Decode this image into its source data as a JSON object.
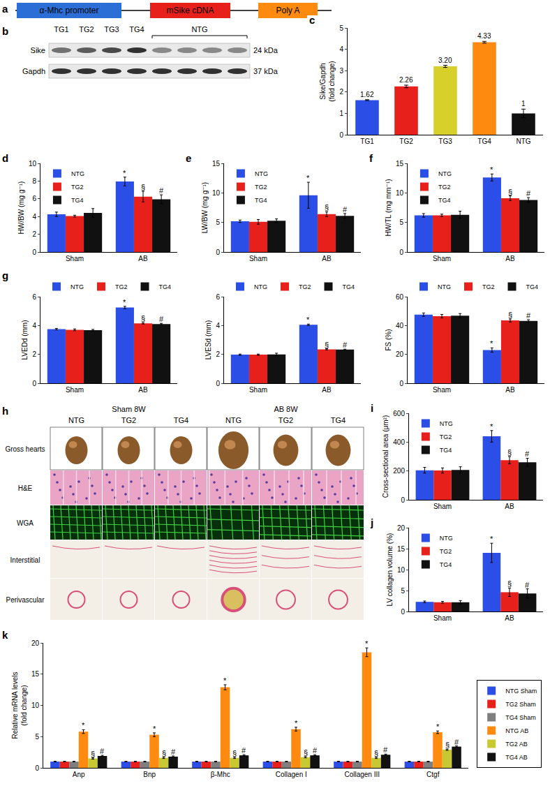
{
  "diagram": {
    "title": "a",
    "parts": [
      "α-Mhc promoter",
      "mSike cDNA",
      "Poly A"
    ],
    "colors": [
      "#2b6fd6",
      "#e8201c",
      "#ff8a10"
    ]
  },
  "blot": {
    "title": "b",
    "lanes": [
      "TG1",
      "TG2",
      "TG3",
      "TG4"
    ],
    "group": "NTG",
    "rows": [
      {
        "name": "Sike",
        "size": "24 kDa"
      },
      {
        "name": "Gapdh",
        "size": "37 kDa"
      }
    ]
  },
  "histology": {
    "title": "h",
    "groups": [
      "Sham 8W",
      "AB 8W"
    ],
    "columns": [
      "NTG",
      "TG2",
      "TG4"
    ],
    "rows": [
      "Gross hearts",
      "H&E",
      "WGA",
      "Interstitial",
      "Perivascular"
    ]
  },
  "chart_data": [
    {
      "type": "bar",
      "title": "c",
      "ylabel": "Sike/Gapdh\n(fold change)",
      "categories": [
        "TG1",
        "TG2",
        "TG3",
        "TG4",
        "NTG"
      ],
      "values": [
        1.62,
        2.26,
        3.2,
        4.33,
        1
      ],
      "value_labels": [
        "1.62",
        "2.26",
        "3.20",
        "4.33",
        "1"
      ],
      "errors": [
        0.02,
        0.06,
        0.05,
        0.04,
        0.2
      ],
      "colors": [
        "#2b4ee6",
        "#e8201c",
        "#d8d02a",
        "#ff8a10",
        "#111111"
      ],
      "data_labels": true,
      "ylim": [
        0,
        5
      ],
      "yticks": [
        0,
        1,
        2,
        3,
        4,
        5
      ]
    },
    {
      "type": "bar",
      "title": "d",
      "ylabel": "HW/BW (mg g⁻¹)",
      "categories": [
        "Sham",
        "AB"
      ],
      "series": [
        {
          "name": "NTG",
          "color": "#2b4ee6",
          "values": [
            4.25,
            7.95
          ],
          "errors": [
            0.25,
            0.5
          ],
          "annotations": [
            null,
            "*"
          ]
        },
        {
          "name": "TG2",
          "color": "#e8201c",
          "values": [
            4.05,
            6.25
          ],
          "errors": [
            0.1,
            0.6
          ],
          "annotations": [
            null,
            "§"
          ]
        },
        {
          "name": "TG4",
          "color": "#111111",
          "values": [
            4.4,
            5.95
          ],
          "errors": [
            0.5,
            0.5
          ],
          "annotations": [
            null,
            "#"
          ]
        }
      ],
      "ylim": [
        0,
        10
      ],
      "yticks": [
        0,
        2,
        4,
        6,
        8,
        10
      ],
      "legend": "top left"
    },
    {
      "type": "bar",
      "title": "e",
      "ylabel": "LW/BW (mg g⁻¹)",
      "categories": [
        "Sham",
        "AB"
      ],
      "series": [
        {
          "name": "NTG",
          "color": "#2b4ee6",
          "values": [
            5.2,
            9.6
          ],
          "errors": [
            0.2,
            2.2
          ],
          "annotations": [
            null,
            "*"
          ]
        },
        {
          "name": "TG2",
          "color": "#e8201c",
          "values": [
            5.1,
            6.4
          ],
          "errors": [
            0.4,
            0.4
          ],
          "annotations": [
            null,
            "§"
          ]
        },
        {
          "name": "TG4",
          "color": "#111111",
          "values": [
            5.3,
            6.1
          ],
          "errors": [
            0.3,
            0.4
          ],
          "annotations": [
            null,
            "#"
          ]
        }
      ],
      "ylim": [
        0,
        15
      ],
      "yticks": [
        0,
        5,
        10,
        15
      ],
      "legend": "top left"
    },
    {
      "type": "bar",
      "title": "f",
      "ylabel": "HW/TL (mg mm⁻¹)",
      "categories": [
        "Sham",
        "AB"
      ],
      "series": [
        {
          "name": "NTG",
          "color": "#2b4ee6",
          "values": [
            6.2,
            12.6
          ],
          "errors": [
            0.3,
            0.6
          ],
          "annotations": [
            null,
            "*"
          ]
        },
        {
          "name": "TG2",
          "color": "#e8201c",
          "values": [
            6.2,
            9.1
          ],
          "errors": [
            0.2,
            0.4
          ],
          "annotations": [
            null,
            "§"
          ]
        },
        {
          "name": "TG4",
          "color": "#111111",
          "values": [
            6.3,
            8.8
          ],
          "errors": [
            0.6,
            0.4
          ],
          "annotations": [
            null,
            "#"
          ]
        }
      ],
      "ylim": [
        0,
        15
      ],
      "yticks": [
        0,
        5,
        10,
        15
      ],
      "legend": "top left"
    },
    {
      "type": "bar",
      "title": "g",
      "ylabel": "LVEDd (mm)",
      "categories": [
        "Sham",
        "AB"
      ],
      "series": [
        {
          "name": "NTG",
          "color": "#2b4ee6",
          "values": [
            3.75,
            5.25
          ],
          "errors": [
            0.05,
            0.08
          ],
          "annotations": [
            null,
            "*"
          ]
        },
        {
          "name": "TG2",
          "color": "#e8201c",
          "values": [
            3.7,
            4.15
          ],
          "errors": [
            0.06,
            0.05
          ],
          "annotations": [
            null,
            "§"
          ]
        },
        {
          "name": "TG4",
          "color": "#111111",
          "values": [
            3.68,
            4.1
          ],
          "errors": [
            0.05,
            0.05
          ],
          "annotations": [
            null,
            "#"
          ]
        }
      ],
      "ylim": [
        0,
        6
      ],
      "yticks": [
        0,
        2,
        4,
        6
      ],
      "legend": "top"
    },
    {
      "type": "bar",
      "ylabel": "LVESd (mm)",
      "categories": [
        "Sham",
        "AB"
      ],
      "series": [
        {
          "name": "NTG",
          "color": "#2b4ee6",
          "values": [
            1.98,
            4.05
          ],
          "errors": [
            0.04,
            0.05
          ],
          "annotations": [
            null,
            "*"
          ]
        },
        {
          "name": "TG2",
          "color": "#e8201c",
          "values": [
            1.98,
            2.35
          ],
          "errors": [
            0.04,
            0.04
          ],
          "annotations": [
            null,
            "§"
          ]
        },
        {
          "name": "TG4",
          "color": "#111111",
          "values": [
            2.0,
            2.33
          ],
          "errors": [
            0.08,
            0.03
          ],
          "annotations": [
            null,
            "#"
          ]
        }
      ],
      "ylim": [
        0,
        6
      ],
      "yticks": [
        0,
        2,
        4,
        6
      ],
      "legend": "top"
    },
    {
      "type": "bar",
      "ylabel": "FS (%)",
      "categories": [
        "Sham",
        "AB"
      ],
      "series": [
        {
          "name": "NTG",
          "color": "#2b4ee6",
          "values": [
            47.5,
            23
          ],
          "errors": [
            1.2,
            1.5
          ],
          "annotations": [
            null,
            "*"
          ]
        },
        {
          "name": "TG2",
          "color": "#e8201c",
          "values": [
            46.5,
            43.5
          ],
          "errors": [
            1.2,
            1.0
          ],
          "annotations": [
            null,
            "§"
          ]
        },
        {
          "name": "TG4",
          "color": "#111111",
          "values": [
            46.8,
            43.2
          ],
          "errors": [
            1.5,
            0.8
          ],
          "annotations": [
            null,
            "#"
          ]
        }
      ],
      "ylim": [
        0,
        60
      ],
      "yticks": [
        0,
        20,
        40,
        60
      ],
      "legend": "top"
    },
    {
      "type": "bar",
      "title": "i",
      "ylabel": "Cross-sectional area (μm²)",
      "categories": [
        "Sham",
        "AB"
      ],
      "series": [
        {
          "name": "NTG",
          "color": "#2b4ee6",
          "values": [
            205,
            440
          ],
          "errors": [
            20,
            40
          ],
          "annotations": [
            null,
            "*"
          ]
        },
        {
          "name": "TG2",
          "color": "#e8201c",
          "values": [
            203,
            275
          ],
          "errors": [
            18,
            25
          ],
          "annotations": [
            null,
            "§"
          ]
        },
        {
          "name": "TG4",
          "color": "#111111",
          "values": [
            207,
            260
          ],
          "errors": [
            22,
            28
          ],
          "annotations": [
            null,
            "#"
          ]
        }
      ],
      "ylim": [
        0,
        600
      ],
      "yticks": [
        0,
        200,
        400,
        600
      ],
      "legend": "top left"
    },
    {
      "type": "bar",
      "title": "j",
      "ylabel": "LV collagen volume (%)",
      "categories": [
        "Sham",
        "AB"
      ],
      "series": [
        {
          "name": "NTG",
          "color": "#2b4ee6",
          "values": [
            2.3,
            14
          ],
          "errors": [
            0.2,
            2.3
          ],
          "annotations": [
            null,
            "*"
          ]
        },
        {
          "name": "TG2",
          "color": "#e8201c",
          "values": [
            2.2,
            4.6
          ],
          "errors": [
            0.2,
            1.0
          ],
          "annotations": [
            null,
            "§"
          ]
        },
        {
          "name": "TG4",
          "color": "#111111",
          "values": [
            2.2,
            4.3
          ],
          "errors": [
            0.4,
            1.1
          ],
          "annotations": [
            null,
            "#"
          ]
        }
      ],
      "ylim": [
        0,
        20
      ],
      "yticks": [
        0,
        5,
        10,
        15,
        20
      ],
      "legend": "top left"
    },
    {
      "type": "bar",
      "title": "k",
      "ylabel": "Relative mRNA levels\n(fold change)",
      "categories": [
        "Anp",
        "Bnp",
        "β-Mhc",
        "Collagen I",
        "Collagen III",
        "Ctgf"
      ],
      "series": [
        {
          "name": "NTG Sham",
          "color": "#2b4ee6",
          "values": [
            1,
            1,
            1,
            1,
            1,
            1
          ],
          "errors": [
            0.05,
            0.05,
            0.05,
            0.05,
            0.05,
            0.05
          ]
        },
        {
          "name": "TG2 Sham",
          "color": "#e8201c",
          "values": [
            1,
            1,
            1,
            1,
            1,
            1
          ],
          "errors": [
            0.05,
            0.05,
            0.05,
            0.05,
            0.05,
            0.05
          ]
        },
        {
          "name": "TG4 Sham",
          "color": "#7f7f7f",
          "values": [
            1,
            1,
            1,
            1,
            1,
            1
          ],
          "errors": [
            0.05,
            0.05,
            0.05,
            0.05,
            0.05,
            0.05
          ]
        },
        {
          "name": "NTG AB",
          "color": "#ff8a10",
          "values": [
            5.8,
            5.3,
            12.9,
            6.2,
            18.5,
            5.7
          ],
          "errors": [
            0.3,
            0.3,
            0.4,
            0.3,
            0.7,
            0.2
          ],
          "annotations": [
            "*",
            "*",
            "*",
            "*",
            "*",
            "*"
          ]
        },
        {
          "name": "TG2 AB",
          "color": "#c8c832",
          "values": [
            1.5,
            1.6,
            1.6,
            1.7,
            1.6,
            2.9
          ],
          "errors": [
            0.1,
            0.1,
            0.1,
            0.1,
            0.1,
            0.1
          ],
          "annotations": [
            "§",
            "§",
            "§",
            "§",
            "§",
            "§"
          ]
        },
        {
          "name": "TG4 AB",
          "color": "#111111",
          "values": [
            1.9,
            1.8,
            2.0,
            2.0,
            2.1,
            3.4
          ],
          "errors": [
            0.1,
            0.1,
            0.1,
            0.1,
            0.1,
            0.1
          ],
          "annotations": [
            "#",
            "#",
            "#",
            "#",
            "#",
            "#"
          ]
        }
      ],
      "ylim": [
        0,
        20
      ],
      "yticks": [
        0,
        5,
        10,
        15,
        20
      ],
      "legend": "bottom right"
    }
  ]
}
